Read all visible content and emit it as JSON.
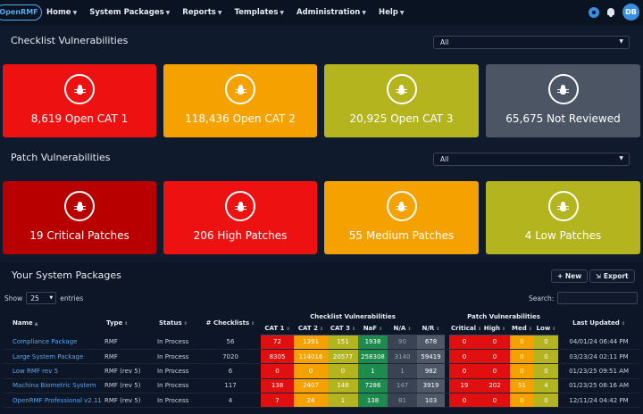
{
  "nav": {
    "logo": "OpenRMF",
    "items": [
      "Home",
      "System Packages",
      "Reports",
      "Templates",
      "Administration",
      "Help"
    ],
    "avatar": "DB"
  },
  "checklist": {
    "title": "Checklist Vulnerabilities",
    "filter": "All",
    "cards": [
      {
        "label": "8,619 Open CAT 1",
        "color": "#ee1111"
      },
      {
        "label": "118,436 Open CAT 2",
        "color": "#f5a200"
      },
      {
        "label": "20,925 Open CAT 3",
        "color": "#b4b41e"
      },
      {
        "label": "65,675 Not Reviewed",
        "color": "#4b5563"
      }
    ]
  },
  "patch": {
    "title": "Patch Vulnerabilities",
    "filter": "All",
    "cards": [
      {
        "label": "19 Critical Patches",
        "color": "#b80000"
      },
      {
        "label": "206 High Patches",
        "color": "#ee1111"
      },
      {
        "label": "55 Medium Patches",
        "color": "#f5a200"
      },
      {
        "label": "4 Low Patches",
        "color": "#b4b41e"
      }
    ]
  },
  "packages": {
    "title": "Your System Packages",
    "new_label": "+ New",
    "export_label": "Export",
    "show_label": "Show",
    "show_value": "25",
    "entries_label": "entries",
    "search_label": "Search:",
    "group_checklist": "Checklist Vulnerabilities",
    "group_patch": "Patch Vulnerabilities",
    "headers": {
      "name": "Name",
      "type": "Type",
      "status": "Status",
      "checklists": "# Checklists",
      "cat1": "CAT 1",
      "cat2": "CAT 2",
      "cat3": "CAT 3",
      "naf": "NaF",
      "na": "N/A",
      "nr": "N/R",
      "critical": "Critical",
      "high": "High",
      "med": "Med",
      "low": "Low",
      "updated": "Last Updated"
    },
    "rows": [
      {
        "name": "Compliance Package",
        "type": "RMF",
        "status": "In Process",
        "checklists": "56",
        "cat1": "72",
        "cat2": "1391",
        "cat3": "151",
        "naf": "1938",
        "na": "90",
        "nr": "678",
        "critical": "0",
        "high": "0",
        "med": "0",
        "low": "0",
        "updated": "04/01/24 06:44 PM"
      },
      {
        "name": "Large System Package",
        "type": "RMF",
        "status": "In Process",
        "checklists": "7020",
        "cat1": "8305",
        "cat2": "114016",
        "cat3": "20577",
        "naf": "258308",
        "na": "3140",
        "nr": "59419",
        "critical": "0",
        "high": "0",
        "med": "0",
        "low": "0",
        "updated": "03/23/24 02:11 PM"
      },
      {
        "name": "Low RMF rev 5",
        "type": "RMF (rev 5)",
        "status": "In Process",
        "checklists": "6",
        "cat1": "0",
        "cat2": "0",
        "cat3": "0",
        "naf": "1",
        "na": "1",
        "nr": "982",
        "critical": "0",
        "high": "0",
        "med": "0",
        "low": "0",
        "updated": "01/23/25 09:51 AM"
      },
      {
        "name": "Machina Biometric System",
        "type": "RMF (rev 5)",
        "status": "In Process",
        "checklists": "117",
        "cat1": "138",
        "cat2": "2407",
        "cat3": "148",
        "naf": "7286",
        "na": "147",
        "nr": "3919",
        "critical": "19",
        "high": "202",
        "med": "51",
        "low": "4",
        "updated": "01/23/25 08:16 AM"
      },
      {
        "name": "OpenRMF Professional v2.11",
        "type": "RMF (rev 5)",
        "status": "In Process",
        "checklists": "4",
        "cat1": "7",
        "cat2": "24",
        "cat3": "1",
        "naf": "138",
        "na": "81",
        "nr": "103",
        "critical": "0",
        "high": "0",
        "med": "0",
        "low": "0",
        "updated": "12/11/24 04:42 PM"
      }
    ],
    "colors": {
      "cat1": "#e01010",
      "cat2": "#f5a200",
      "cat3": "#b4b41e",
      "naf": "#1d8a4e",
      "na": "#3a4352",
      "nr": "#4e5866",
      "critical": "#e01010",
      "high": "#e01010",
      "med": "#f5a200",
      "low": "#b4b41e"
    }
  }
}
